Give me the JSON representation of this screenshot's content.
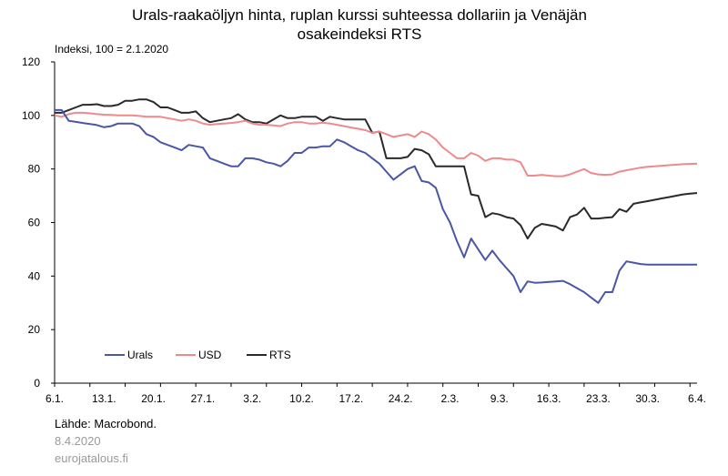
{
  "chart_data": {
    "type": "line",
    "title_line1": "Urals-raakaöljyn hinta, ruplan kurssi suhteessa dollariin ja Venäjän",
    "title_line2": "osakeindeksi RTS",
    "ylabel": "Indeksi, 100 = 2.1.2020",
    "ylim": [
      0,
      120
    ],
    "yticks": [
      "0",
      "20",
      "40",
      "60",
      "80",
      "100",
      "120"
    ],
    "xtick_labels": [
      "6.1.",
      "13.1.",
      "20.1.",
      "27.1.",
      "3.2.",
      "10.2.",
      "17.2.",
      "24.2.",
      "2.3.",
      "9.3.",
      "16.3.",
      "23.3.",
      "30.3.",
      "6.4."
    ],
    "legend_position": "bottom-left",
    "grid": false,
    "series": [
      {
        "name": "Urals",
        "color": "#4a56a6",
        "x": [
          0,
          1,
          2,
          3,
          4,
          5,
          6,
          7,
          8,
          9,
          10,
          11,
          12,
          13,
          14,
          15,
          16,
          17,
          18,
          19,
          20,
          21,
          22,
          23,
          24,
          25,
          26,
          27,
          28,
          29,
          30,
          31,
          32,
          33,
          34,
          35,
          36,
          37,
          38,
          39,
          40,
          41,
          42,
          43,
          44,
          45,
          46,
          47,
          48,
          49,
          50,
          51,
          52,
          53,
          54,
          55,
          56,
          57,
          58,
          59,
          60,
          61,
          62,
          63,
          64,
          65,
          66,
          67,
          68,
          69,
          70,
          71,
          72,
          73,
          74,
          75,
          76,
          77,
          78,
          79,
          80,
          81,
          82,
          83,
          84,
          85,
          86,
          87,
          88,
          89,
          90,
          91
        ],
        "values": [
          102,
          102,
          98,
          97.6,
          97.2,
          96.8,
          96.4,
          95.6,
          96,
          97,
          97,
          97,
          96,
          93,
          92,
          90,
          89,
          88,
          87,
          89,
          88.5,
          88,
          84,
          83,
          82,
          81,
          81,
          84,
          84,
          83.5,
          82.5,
          82,
          81,
          83,
          86,
          86,
          88,
          88,
          88.5,
          88.5,
          91,
          90,
          88.5,
          87,
          86,
          84,
          82,
          79,
          76,
          78,
          80,
          81,
          75.5,
          75,
          73,
          65,
          60,
          53,
          47,
          54,
          50,
          46,
          49.5,
          46,
          43,
          40,
          34,
          38,
          37.5,
          37.6,
          37.8,
          38,
          38.2,
          37,
          35.5,
          34,
          32,
          30,
          34,
          34,
          42,
          45.5,
          45,
          44.5,
          44.3,
          44.3,
          44.3,
          44.3,
          44.3,
          44.3,
          44.3,
          44.3
        ]
      },
      {
        "name": "USD",
        "color": "#ef8a8c",
        "x": [
          0,
          1,
          2,
          3,
          4,
          5,
          6,
          7,
          8,
          9,
          10,
          11,
          12,
          13,
          14,
          15,
          16,
          17,
          18,
          19,
          20,
          21,
          22,
          23,
          24,
          25,
          26,
          27,
          28,
          29,
          30,
          31,
          32,
          33,
          34,
          35,
          36,
          37,
          38,
          39,
          40,
          41,
          42,
          43,
          44,
          45,
          46,
          47,
          48,
          49,
          50,
          51,
          52,
          53,
          54,
          55,
          56,
          57,
          58,
          59,
          60,
          61,
          62,
          63,
          64,
          65,
          66,
          67,
          68,
          69,
          70,
          71,
          72,
          73,
          74,
          75,
          76,
          77,
          78,
          79,
          80,
          81,
          82,
          83,
          84,
          85,
          86,
          87,
          88,
          89,
          90,
          91
        ],
        "values": [
          100,
          99.5,
          100.5,
          101,
          101,
          100.8,
          100.5,
          100.3,
          100.2,
          100,
          100,
          100,
          99.8,
          99.5,
          99.5,
          99.5,
          99,
          98.5,
          98,
          98.5,
          98,
          97,
          96.5,
          96.8,
          97,
          97.2,
          97.5,
          98,
          97,
          96.5,
          96.5,
          96.3,
          96,
          97,
          97.5,
          97.5,
          97,
          97,
          97.3,
          97,
          96.5,
          96,
          95.5,
          95,
          94.5,
          93.5,
          94,
          93,
          92,
          92.5,
          93,
          92,
          94,
          93,
          91,
          88,
          86,
          84,
          84,
          86,
          85,
          83,
          84,
          84,
          83.5,
          83.5,
          82.5,
          77.5,
          77.5,
          77.8,
          77.5,
          77.3,
          77.3,
          78,
          79,
          80,
          78.5,
          78,
          77.8,
          78,
          79,
          79.5,
          80,
          80.5,
          80.8,
          81,
          81.2,
          81.4,
          81.6,
          81.8,
          81.9,
          82
        ]
      },
      {
        "name": "RTS",
        "color": "#2a2a2a",
        "x": [
          0,
          1,
          2,
          3,
          4,
          5,
          6,
          7,
          8,
          9,
          10,
          11,
          12,
          13,
          14,
          15,
          16,
          17,
          18,
          19,
          20,
          21,
          22,
          23,
          24,
          25,
          26,
          27,
          28,
          29,
          30,
          31,
          32,
          33,
          34,
          35,
          36,
          37,
          38,
          39,
          40,
          41,
          42,
          43,
          44,
          45,
          46,
          47,
          48,
          49,
          50,
          51,
          52,
          53,
          54,
          55,
          56,
          57,
          58,
          59,
          60,
          61,
          62,
          63,
          64,
          65,
          66,
          67,
          68,
          69,
          70,
          71,
          72,
          73,
          74,
          75,
          76,
          77,
          78,
          79,
          80,
          81,
          82,
          83,
          84,
          85,
          86,
          87,
          88,
          89,
          90,
          91
        ],
        "values": [
          101,
          101,
          102,
          103,
          104,
          104,
          104.2,
          103.5,
          103.5,
          104,
          105.5,
          105.5,
          106,
          106,
          105,
          103,
          103,
          102,
          101,
          101,
          101.5,
          99,
          97.5,
          98,
          98.5,
          99,
          100.5,
          98.5,
          97.5,
          97.5,
          97,
          98.5,
          100,
          99,
          99,
          99.5,
          99.5,
          99.5,
          98,
          99.5,
          99,
          98.5,
          98.5,
          98.5,
          98.5,
          93.5,
          94,
          84,
          84,
          84,
          84.5,
          87.5,
          87,
          85.5,
          81,
          81,
          81,
          81,
          81,
          70.5,
          70,
          62,
          63.5,
          63,
          62,
          61.5,
          59,
          54,
          58,
          59.5,
          59,
          58.5,
          57,
          62,
          63,
          65.5,
          61.5,
          61.5,
          61.8,
          62,
          65,
          64,
          67,
          67.5,
          68,
          68.5,
          69,
          69.5,
          70,
          70.5,
          70.8,
          71
        ]
      }
    ]
  },
  "footer": {
    "source": "Lähde: Macrobond.",
    "date": "8.4.2020",
    "site": "eurojatalous.fi"
  }
}
